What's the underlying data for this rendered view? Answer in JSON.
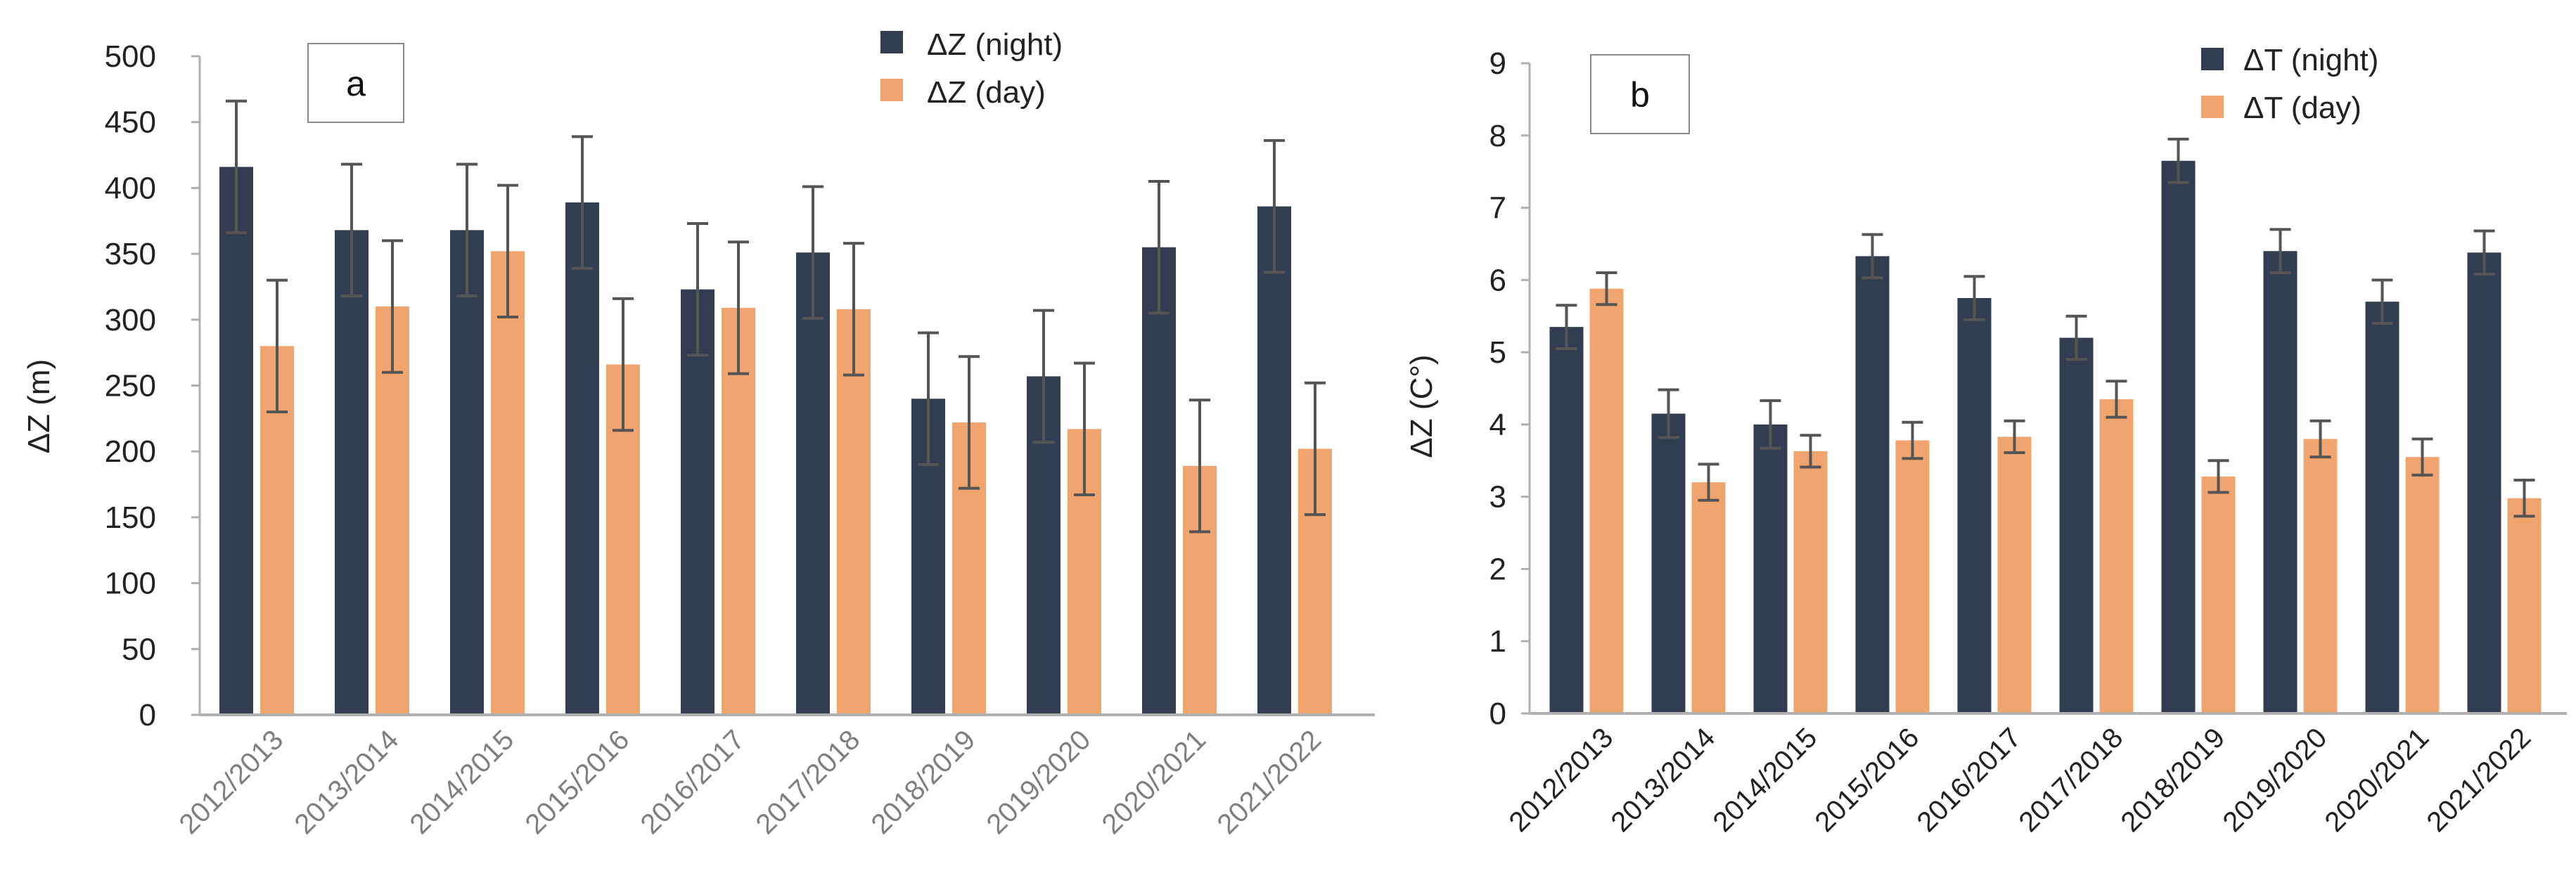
{
  "colors": {
    "night": "#323d51",
    "day": "#f0a46e",
    "error_bar": "#555555",
    "axis": "#b0b0b0",
    "x_tick_a": "#7f7f7f",
    "x_tick_b": "#222222"
  },
  "chart_data": [
    {
      "type": "bar",
      "panel_label": "a",
      "ylabel": "ΔZ (m)",
      "xlabel": "",
      "ylim": [
        0,
        500
      ],
      "y_ticks": [
        0,
        50,
        100,
        150,
        200,
        250,
        300,
        350,
        400,
        450,
        500
      ],
      "grid": false,
      "legend_position": "top-center",
      "categories": [
        "2012/2013",
        "2013/2014",
        "2014/2015",
        "2015/2016",
        "2016/2017",
        "2017/2018",
        "2018/2019",
        "2019/2020",
        "2020/2021",
        "2021/2022"
      ],
      "series": [
        {
          "name": "ΔZ (night)",
          "values": [
            416,
            368,
            368,
            389,
            323,
            351,
            240,
            257,
            355,
            386
          ],
          "error": [
            50,
            50,
            50,
            50,
            50,
            50,
            50,
            50,
            50,
            50
          ]
        },
        {
          "name": "ΔZ (day)",
          "values": [
            280,
            310,
            352,
            266,
            309,
            308,
            222,
            217,
            189,
            202
          ],
          "error": [
            50,
            50,
            50,
            50,
            50,
            50,
            50,
            50,
            50,
            50
          ]
        }
      ]
    },
    {
      "type": "bar",
      "panel_label": "b",
      "ylabel": "ΔZ (C°)",
      "xlabel": "",
      "ylim": [
        0,
        9
      ],
      "y_ticks": [
        0,
        1,
        2,
        3,
        4,
        5,
        6,
        7,
        8,
        9
      ],
      "grid": false,
      "legend_position": "top-right",
      "categories": [
        "2012/2013",
        "2013/2014",
        "2014/2015",
        "2015/2016",
        "2016/2017",
        "2017/2018",
        "2018/2019",
        "2019/2020",
        "2020/2021",
        "2021/2022"
      ],
      "series": [
        {
          "name": "ΔT (night)",
          "values": [
            5.35,
            4.15,
            4.0,
            6.33,
            5.75,
            5.2,
            7.65,
            6.4,
            5.7,
            6.38
          ],
          "error": [
            0.3,
            0.33,
            0.33,
            0.3,
            0.3,
            0.3,
            0.3,
            0.3,
            0.3,
            0.3
          ]
        },
        {
          "name": "ΔT (day)",
          "values": [
            5.88,
            3.2,
            3.63,
            3.78,
            3.83,
            4.35,
            3.28,
            3.8,
            3.55,
            2.98
          ],
          "error": [
            0.22,
            0.25,
            0.22,
            0.25,
            0.22,
            0.25,
            0.22,
            0.25,
            0.25,
            0.25
          ]
        }
      ]
    }
  ]
}
